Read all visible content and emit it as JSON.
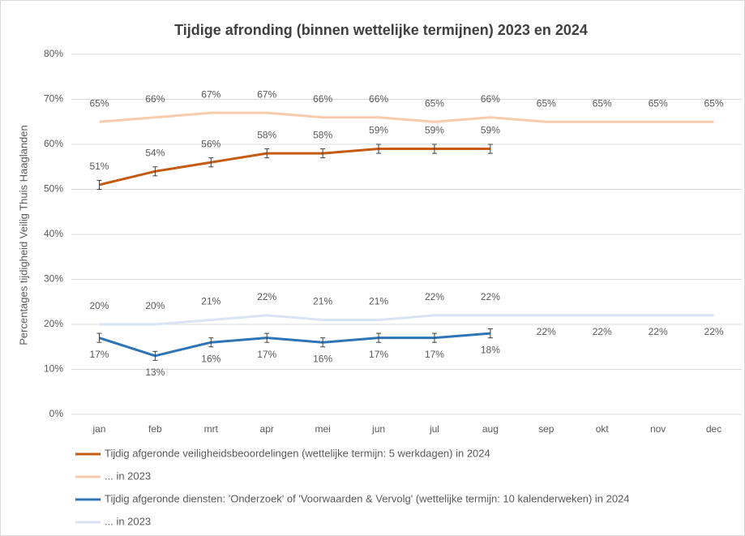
{
  "chart_data": {
    "type": "line",
    "title": "Tijdige afronding (binnen wettelijke termijnen) 2023 en 2024",
    "y_label": "Percentages tijdigheid Veilig Thuis Haaglanden",
    "categories": [
      "jan",
      "feb",
      "mrt",
      "apr",
      "mei",
      "jun",
      "jul",
      "aug",
      "sep",
      "okt",
      "nov",
      "dec"
    ],
    "ylim": [
      0,
      80
    ],
    "yticks": [
      {
        "value": 0,
        "label": "0%"
      },
      {
        "value": 10,
        "label": "10%"
      },
      {
        "value": 20,
        "label": "20%"
      },
      {
        "value": 30,
        "label": "30%"
      },
      {
        "value": 40,
        "label": "40%"
      },
      {
        "value": 50,
        "label": "50%"
      },
      {
        "value": 60,
        "label": "60%"
      },
      {
        "value": 70,
        "label": "70%"
      },
      {
        "value": 80,
        "label": "80%"
      }
    ],
    "grid": true,
    "legend": "bottom",
    "series": [
      {
        "name": "Tijdig afgeronde veiligheidsbeoordelingen (wettelijke termijn: 5 werkdagen) in 2024",
        "color": "#c55a11",
        "values": [
          51,
          54,
          56,
          58,
          58,
          59,
          59,
          59,
          null,
          null,
          null,
          null
        ],
        "errors": [
          1,
          1,
          1,
          1,
          1,
          1,
          1,
          1,
          null,
          null,
          null,
          null
        ],
        "value_labels": [
          "51%",
          "54%",
          "56%",
          "58%",
          "58%",
          "59%",
          "59%",
          "59%",
          null,
          null,
          null,
          null
        ]
      },
      {
        "name": "... in 2023",
        "color": "#f8cbad",
        "values": [
          65,
          66,
          67,
          67,
          66,
          66,
          65,
          66,
          65,
          65,
          65,
          65
        ],
        "value_labels": [
          "65%",
          "66%",
          "67%",
          "67%",
          "66%",
          "66%",
          "65%",
          "66%",
          "65%",
          "65%",
          "65%",
          "65%"
        ]
      },
      {
        "name": "Tijdig afgeronde diensten: 'Onderzoek' of 'Voorwaarden & Vervolg' (wettelijke termijn: 10 kalenderweken) in 2024",
        "color": "#2e75b6",
        "values": [
          17,
          13,
          16,
          17,
          16,
          17,
          17,
          18,
          null,
          null,
          null,
          null
        ],
        "errors": [
          1,
          1,
          1,
          1,
          1,
          1,
          1,
          1,
          null,
          null,
          null,
          null
        ],
        "value_labels": [
          "17%",
          "13%",
          "16%",
          "17%",
          "16%",
          "17%",
          "17%",
          "18%",
          null,
          null,
          null,
          null
        ]
      },
      {
        "name": "... in 2023",
        "color": "#dae3f3",
        "values": [
          20,
          20,
          21,
          22,
          21,
          21,
          22,
          22,
          22,
          22,
          22,
          22
        ],
        "value_labels": [
          "20%",
          "20%",
          "21%",
          "22%",
          "21%",
          "21%",
          "22%",
          "22%",
          "22%",
          "22%",
          "22%",
          "22%"
        ]
      }
    ]
  }
}
